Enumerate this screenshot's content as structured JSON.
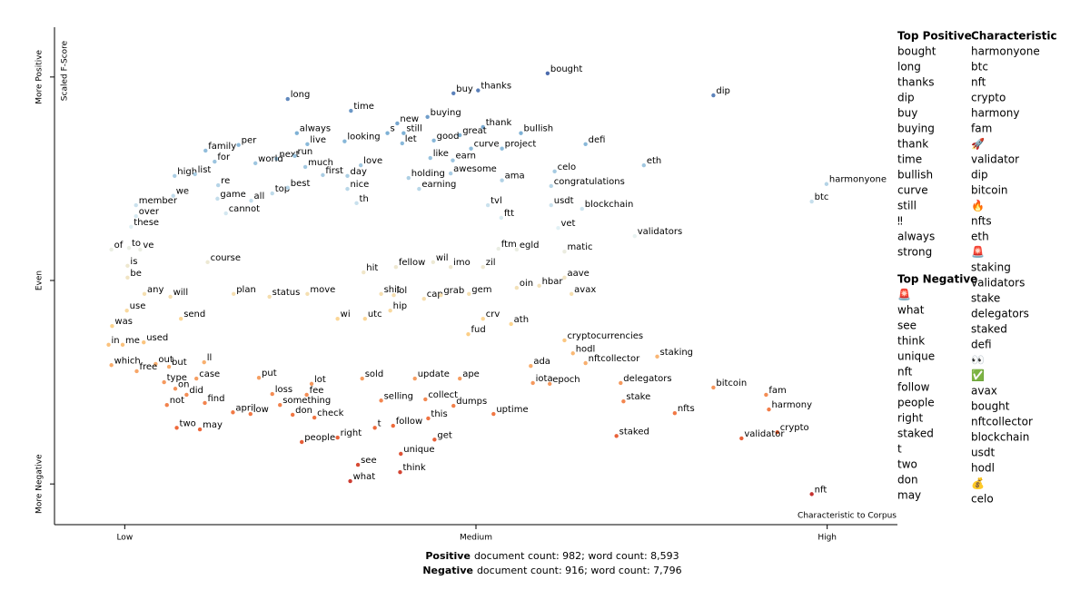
{
  "chart_data": {
    "type": "scatter",
    "y_axis_label": "Scaled F-Score",
    "x_axis_label": "Characteristic to Corpus",
    "xlim": [
      -0.1,
      1.1
    ],
    "ylim": [
      -0.1,
      1.1
    ],
    "xticks": [
      {
        "value": 0,
        "label": "Low"
      },
      {
        "value": 0.5,
        "label": "Medium"
      },
      {
        "value": 1,
        "label": "High"
      }
    ],
    "yticks": [
      {
        "value": 0,
        "label": "More Negative"
      },
      {
        "value": 0.5,
        "label": "Even"
      },
      {
        "value": 1,
        "label": "More Positive"
      }
    ],
    "colors": [
      "#b2182b",
      "#ef6a3a",
      "#fdd38a",
      "#e6f3f6",
      "#7fb2d6",
      "#2c3f94"
    ],
    "labels": [
      "bought",
      "dip",
      "long",
      "time",
      "buy",
      "thanks",
      "buying",
      "new",
      "thank",
      "always",
      "s",
      "still",
      "great",
      "bullish",
      "live",
      "looking",
      "let",
      "good",
      "per",
      "family",
      "defi",
      "curve",
      "project",
      "next",
      "run",
      "world",
      "for",
      "much",
      "like",
      "earn",
      "love",
      "celo",
      "eth",
      "awesome",
      "high",
      "list",
      "first",
      "day",
      "holding",
      "ama",
      "harmonyone",
      "re",
      "top",
      "best",
      "nice",
      "earning",
      "congratulations",
      "we",
      "game",
      "all",
      "th",
      "btc",
      "member",
      "tvl",
      "usdt",
      "blockchain",
      "over",
      "cannot",
      "ftt",
      "these",
      "vet",
      "validators",
      "of",
      "to",
      "ve",
      "ftm",
      "egld",
      "matic",
      "is",
      "course",
      "fellow",
      "wil",
      "imo",
      "zil",
      "hit",
      "hbar",
      "be",
      "aave",
      "any",
      "will",
      "plan",
      "status",
      "move",
      "shit",
      "lol",
      "cap",
      "grab",
      "gem",
      "avax",
      "oin",
      "use",
      "hip",
      "send",
      "wi",
      "utc",
      "crv",
      "ath",
      "was",
      "fud",
      "cryptocurrencies",
      "in",
      "me",
      "used",
      "hodl",
      "staking",
      "which",
      "out",
      "free",
      "but",
      "ll",
      "ada",
      "nftcollector",
      "type",
      "case",
      "put",
      "sold",
      "update",
      "ape",
      "iota",
      "epoch",
      "on",
      "delegators",
      "bitcoin",
      "did",
      "loss",
      "fee",
      "lot",
      "fam",
      "find",
      "something",
      "selling",
      "collect",
      "dumps",
      "stake",
      "not",
      "april",
      "low",
      "don",
      "check",
      "uptime",
      "nfts",
      "harmony",
      "this",
      "two",
      "may",
      "follow",
      "t",
      "staked",
      "crypto",
      "right",
      "get",
      "people",
      "validator",
      "unique",
      "nft",
      "see",
      "think",
      "what"
    ],
    "x": [
      0.602,
      0.838,
      0.232,
      0.322,
      0.468,
      0.503,
      0.431,
      0.388,
      0.51,
      0.245,
      0.374,
      0.397,
      0.477,
      0.564,
      0.26,
      0.313,
      0.395,
      0.44,
      0.162,
      0.115,
      0.656,
      0.493,
      0.537,
      0.216,
      0.242,
      0.186,
      0.128,
      0.257,
      0.435,
      0.467,
      0.336,
      0.612,
      0.739,
      0.464,
      0.071,
      0.1,
      0.282,
      0.317,
      0.404,
      0.537,
      0.999,
      0.133,
      0.21,
      0.232,
      0.317,
      0.419,
      0.607,
      0.069,
      0.132,
      0.18,
      0.33,
      0.978,
      0.016,
      0.517,
      0.607,
      0.651,
      0.016,
      0.144,
      0.536,
      0.009,
      0.617,
      0.726,
      -0.019,
      0.006,
      0.022,
      0.532,
      0.558,
      0.626,
      0.004,
      0.118,
      0.386,
      0.439,
      0.464,
      0.51,
      0.34,
      0.59,
      0.004,
      0.626,
      0.028,
      0.065,
      0.155,
      0.206,
      0.26,
      0.365,
      0.383,
      0.426,
      0.45,
      0.49,
      0.636,
      0.558,
      0.003,
      0.378,
      0.08,
      0.303,
      0.342,
      0.51,
      0.55,
      -0.018,
      0.489,
      0.626,
      -0.023,
      -0.003,
      0.027,
      0.638,
      0.758,
      -0.019,
      0.044,
      0.017,
      0.063,
      0.113,
      0.578,
      0.656,
      0.056,
      0.102,
      0.191,
      0.338,
      0.413,
      0.477,
      0.581,
      0.605,
      0.072,
      0.706,
      0.838,
      0.088,
      0.21,
      0.259,
      0.266,
      0.913,
      0.114,
      0.221,
      0.365,
      0.428,
      0.468,
      0.71,
      0.06,
      0.154,
      0.179,
      0.239,
      0.27,
      0.525,
      0.783,
      0.917,
      0.432,
      0.074,
      0.107,
      0.382,
      0.356,
      0.7,
      0.929,
      0.303,
      0.441,
      0.252,
      0.878,
      0.393,
      0.978,
      0.332,
      0.392,
      0.321
    ],
    "y": [
      1.009,
      0.955,
      0.946,
      0.917,
      0.96,
      0.967,
      0.902,
      0.886,
      0.877,
      0.862,
      0.862,
      0.862,
      0.857,
      0.862,
      0.835,
      0.842,
      0.837,
      0.844,
      0.833,
      0.819,
      0.835,
      0.824,
      0.824,
      0.799,
      0.806,
      0.788,
      0.792,
      0.779,
      0.801,
      0.795,
      0.783,
      0.768,
      0.783,
      0.763,
      0.757,
      0.761,
      0.759,
      0.757,
      0.752,
      0.746,
      0.737,
      0.734,
      0.714,
      0.728,
      0.725,
      0.725,
      0.732,
      0.708,
      0.701,
      0.696,
      0.69,
      0.694,
      0.685,
      0.685,
      0.685,
      0.676,
      0.658,
      0.665,
      0.654,
      0.632,
      0.629,
      0.609,
      0.576,
      0.58,
      0.576,
      0.578,
      0.576,
      0.571,
      0.536,
      0.545,
      0.533,
      0.545,
      0.533,
      0.533,
      0.52,
      0.487,
      0.507,
      0.507,
      0.467,
      0.46,
      0.467,
      0.46,
      0.467,
      0.467,
      0.464,
      0.455,
      0.464,
      0.467,
      0.467,
      0.482,
      0.426,
      0.426,
      0.406,
      0.406,
      0.406,
      0.406,
      0.393,
      0.388,
      0.368,
      0.353,
      0.342,
      0.342,
      0.348,
      0.321,
      0.313,
      0.292,
      0.295,
      0.277,
      0.288,
      0.299,
      0.29,
      0.297,
      0.25,
      0.259,
      0.261,
      0.259,
      0.259,
      0.259,
      0.248,
      0.246,
      0.234,
      0.248,
      0.237,
      0.219,
      0.221,
      0.219,
      0.246,
      0.219,
      0.199,
      0.194,
      0.205,
      0.208,
      0.192,
      0.203,
      0.194,
      0.176,
      0.172,
      0.17,
      0.163,
      0.172,
      0.174,
      0.183,
      0.161,
      0.138,
      0.134,
      0.143,
      0.138,
      0.118,
      0.127,
      0.114,
      0.109,
      0.103,
      0.112,
      0.074,
      -0.025,
      0.047,
      0.029,
      0.007
    ]
  },
  "top_positive": {
    "title": "Top Positive",
    "terms": [
      "bought",
      "long",
      "thanks",
      "dip",
      "buy",
      "buying",
      "thank",
      "time",
      "bullish",
      "curve",
      "still",
      "‼",
      "always",
      "strong"
    ]
  },
  "top_negative": {
    "title": "Top Negative",
    "terms": [
      "🚨",
      "what",
      "see",
      "think",
      "unique",
      "nft",
      "follow",
      "people",
      "right",
      "staked",
      "t",
      "two",
      "don",
      "may"
    ]
  },
  "characteristic": {
    "title": "Characteristic",
    "terms": [
      "harmonyone",
      "btc",
      "nft",
      "crypto",
      "harmony",
      "fam",
      "🚀",
      "validator",
      "dip",
      "bitcoin",
      "🔥",
      "nfts",
      "eth",
      "🚨",
      "staking",
      "validators",
      "stake",
      "delegators",
      "staked",
      "defi",
      "👀",
      "✅",
      "avax",
      "bought",
      "nftcollector",
      "blockchain",
      "usdt",
      "hodl",
      "💰",
      "celo"
    ]
  },
  "footer": [
    {
      "label": "Positive",
      "text": "document count: 982; word count: 8,593"
    },
    {
      "label": "Negative",
      "text": "document count: 916; word count: 7,796"
    }
  ]
}
